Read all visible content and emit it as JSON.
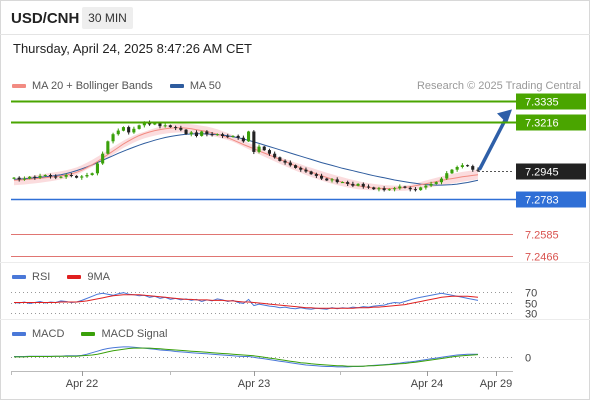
{
  "header": {
    "symbol": "USD/CNH",
    "timeframe": "30 MIN"
  },
  "timestamp": "Thursday, April 24, 2025 8:47:26 AM CET",
  "credit": "Research © 2025 Trading Central",
  "legends": {
    "main": [
      {
        "label": "MA 20 + Bollinger Bands",
        "color": "#f28b82"
      },
      {
        "label": "MA 50",
        "color": "#2e5c9e"
      }
    ],
    "rsi": [
      {
        "label": "RSI",
        "color": "#4a78d8"
      },
      {
        "label": "9MA",
        "color": "#e02020"
      }
    ],
    "macd": [
      {
        "label": "MACD",
        "color": "#4a78d8"
      },
      {
        "label": "MACD Signal",
        "color": "#3aa00a"
      }
    ]
  },
  "colors": {
    "up": "#3aa00a",
    "down": "#222222",
    "resistance": "#4aa500",
    "support": "#2f6fd6",
    "lower_support": "#d9534f",
    "current": "#222222",
    "bands": "#f9c9cc",
    "ma20": "#f28b82",
    "ma50": "#2e5c9e"
  },
  "chart_data": [
    {
      "type": "candlestick",
      "title": "USD/CNH 30 MIN",
      "x_ticks": [
        "Apr 22",
        "Apr 23",
        "Apr 24",
        "Apr 29"
      ],
      "ylim": [
        7.243,
        7.3365
      ],
      "current_price": 7.2945,
      "levels": [
        {
          "value": 7.3335,
          "label": "7.3335",
          "kind": "resistance"
        },
        {
          "value": 7.3216,
          "label": "7.3216",
          "kind": "resistance"
        },
        {
          "value": 7.2945,
          "label": "7.2945",
          "kind": "current"
        },
        {
          "value": 7.2783,
          "label": "7.2783",
          "kind": "support"
        },
        {
          "value": 7.2585,
          "label": "7.2585",
          "kind": "lower_support"
        },
        {
          "value": 7.2466,
          "label": "7.2466",
          "kind": "lower_support"
        }
      ],
      "close_series": [
        7.2905,
        7.2895,
        7.29,
        7.291,
        7.2905,
        7.2915,
        7.292,
        7.2912,
        7.2905,
        7.291,
        7.292,
        7.2915,
        7.2905,
        7.2912,
        7.292,
        7.293,
        7.2985,
        7.304,
        7.311,
        7.315,
        7.317,
        7.319,
        7.316,
        7.318,
        7.32,
        7.3215,
        7.3205,
        7.321,
        7.3195,
        7.32,
        7.319,
        7.3185,
        7.3175,
        7.315,
        7.316,
        7.314,
        7.3165,
        7.315,
        7.3145,
        7.315,
        7.314,
        7.3135,
        7.314,
        7.313,
        7.311,
        7.3165,
        7.305,
        7.308,
        7.306,
        7.304,
        7.302,
        7.3,
        7.299,
        7.2975,
        7.296,
        7.295,
        7.294,
        7.2925,
        7.2915,
        7.29,
        7.289,
        7.2895,
        7.288,
        7.288,
        7.287,
        7.286,
        7.287,
        7.2855,
        7.285,
        7.284,
        7.2845,
        7.2835,
        7.284,
        7.2845,
        7.2855,
        7.2848,
        7.284,
        7.2835,
        7.285,
        7.286,
        7.287,
        7.288,
        7.29,
        7.293,
        7.295,
        7.2965,
        7.2975,
        7.297,
        7.295,
        7.2945
      ],
      "ma50": [
        7.2895,
        7.2897,
        7.2899,
        7.2902,
        7.2904,
        7.2907,
        7.291,
        7.2913,
        7.2917,
        7.2922,
        7.2928,
        7.2936,
        7.2945,
        7.2955,
        7.2965,
        7.2977,
        7.299,
        7.3003,
        7.3016,
        7.3029,
        7.3042,
        7.3054,
        7.3066,
        7.3077,
        7.3088,
        7.3098,
        7.3107,
        7.3116,
        7.3124,
        7.3131,
        7.3137,
        7.3142,
        7.3146,
        7.3149,
        7.3151,
        7.3152,
        7.3152,
        7.3151,
        7.315,
        7.3148,
        7.3145,
        7.3141,
        7.3136,
        7.313,
        7.3123,
        7.3115,
        7.3107,
        7.3098,
        7.3089,
        7.308,
        7.3071,
        7.3062,
        7.3053,
        7.3044,
        7.3035,
        7.3026,
        7.3017,
        7.3008,
        7.2999,
        7.299,
        7.2982,
        7.2974,
        7.2966,
        7.2958,
        7.2951,
        7.2944,
        7.2937,
        7.293,
        7.2923,
        7.2916,
        7.291,
        7.2904,
        7.2898,
        7.2892,
        7.2887,
        7.2882,
        7.2877,
        7.2873,
        7.2869,
        7.2866,
        7.2864,
        7.2863,
        7.2863,
        7.2864,
        7.2866,
        7.2869,
        7.2873,
        7.2878,
        7.2884,
        7.289
      ],
      "ma20": [
        7.289,
        7.2892,
        7.2894,
        7.2897,
        7.2899,
        7.2902,
        7.2905,
        7.2908,
        7.2911,
        7.2915,
        7.292,
        7.2926,
        7.2935,
        7.2947,
        7.2962,
        7.2978,
        7.2996,
        7.3015,
        7.3035,
        7.3055,
        7.3075,
        7.3095,
        7.3112,
        7.3128,
        7.3142,
        7.3153,
        7.3162,
        7.317,
        7.3176,
        7.3181,
        7.3184,
        7.3186,
        7.3186,
        7.3184,
        7.318,
        7.3175,
        7.317,
        7.3165,
        7.3158,
        7.315,
        7.314,
        7.313,
        7.3118,
        7.3105,
        7.3092,
        7.308,
        7.3068,
        7.3056,
        7.3044,
        7.3032,
        7.302,
        7.3008,
        7.2996,
        7.2984,
        7.2972,
        7.296,
        7.2948,
        7.2937,
        7.2926,
        7.2916,
        7.2906,
        7.2897,
        7.2888,
        7.288,
        7.2872,
        7.2865,
        7.2859,
        7.2854,
        7.285,
        7.2847,
        7.2845,
        7.2844,
        7.2844,
        7.2845,
        7.2847,
        7.285,
        7.2854,
        7.2859,
        7.2865,
        7.2871,
        7.2877,
        7.2883,
        7.2889,
        7.2895,
        7.29,
        7.2905,
        7.291,
        7.2914,
        7.2918,
        7.2922
      ]
    },
    {
      "type": "line",
      "title": "RSI",
      "levels": [
        70,
        50,
        30
      ],
      "ylim": [
        20,
        80
      ],
      "series": [
        {
          "name": "RSI",
          "values": [
            50,
            49,
            51,
            48,
            50,
            52,
            49,
            51,
            50,
            53,
            52,
            50,
            51,
            54,
            58,
            62,
            66,
            68,
            66,
            64,
            67,
            69,
            66,
            65,
            63,
            64,
            60,
            62,
            58,
            60,
            56,
            58,
            55,
            57,
            54,
            56,
            52,
            55,
            53,
            57,
            55,
            52,
            54,
            50,
            48,
            56,
            44,
            47,
            45,
            43,
            42,
            40,
            41,
            39,
            38,
            40,
            38,
            37,
            39,
            38,
            37,
            40,
            38,
            40,
            39,
            41,
            40,
            42,
            41,
            43,
            44,
            45,
            48,
            50,
            49,
            52,
            55,
            58,
            60,
            62,
            64,
            66,
            68,
            66,
            64,
            62,
            60,
            58,
            56,
            54
          ]
        },
        {
          "name": "9MA",
          "values": [
            50,
            50,
            50,
            50,
            50,
            50,
            50,
            50,
            50,
            51,
            51,
            51,
            51,
            52,
            53,
            55,
            57,
            59,
            61,
            63,
            64,
            65,
            65,
            65,
            65,
            64,
            63,
            62,
            61,
            60,
            59,
            58,
            57,
            56,
            56,
            55,
            55,
            55,
            54,
            54,
            54,
            53,
            53,
            52,
            51,
            51,
            50,
            49,
            48,
            47,
            46,
            45,
            44,
            43,
            42,
            41,
            40,
            40,
            39,
            39,
            39,
            39,
            39,
            39,
            39,
            39,
            40,
            40,
            40,
            41,
            41,
            42,
            43,
            44,
            45,
            46,
            48,
            50,
            52,
            54,
            56,
            58,
            60,
            61,
            62,
            62,
            62,
            62,
            61,
            60
          ]
        }
      ]
    },
    {
      "type": "line",
      "title": "MACD",
      "levels": [
        0
      ],
      "ylim": [
        -0.0035,
        0.003
      ],
      "series": [
        {
          "name": "MACD",
          "values": [
            0.0,
            0.0,
            0.0,
            0.0001,
            0.0001,
            0.0001,
            0.0001,
            0.0001,
            0.0001,
            0.0001,
            0.0002,
            0.0002,
            0.0002,
            0.0003,
            0.0006,
            0.001,
            0.0014,
            0.0018,
            0.0021,
            0.0023,
            0.0024,
            0.0025,
            0.0025,
            0.0024,
            0.0023,
            0.0022,
            0.002,
            0.0019,
            0.0017,
            0.0016,
            0.0015,
            0.0013,
            0.0012,
            0.0011,
            0.001,
            0.0009,
            0.0008,
            0.0007,
            0.0006,
            0.0005,
            0.0004,
            0.0003,
            0.0002,
            0.0001,
            0.0,
            0.0,
            -0.0002,
            -0.0004,
            -0.0006,
            -0.0008,
            -0.001,
            -0.0012,
            -0.0014,
            -0.0016,
            -0.0018,
            -0.002,
            -0.0022,
            -0.0023,
            -0.0024,
            -0.0025,
            -0.0026,
            -0.0026,
            -0.0027,
            -0.0027,
            -0.0027,
            -0.0026,
            -0.0026,
            -0.0025,
            -0.0024,
            -0.0023,
            -0.0022,
            -0.0021,
            -0.002,
            -0.0018,
            -0.0017,
            -0.0015,
            -0.0014,
            -0.0012,
            -0.001,
            -0.0008,
            -0.0006,
            -0.0004,
            -0.0002,
            0.0,
            0.0002,
            0.0004,
            0.0005,
            0.0006,
            0.0006,
            0.0006
          ]
        },
        {
          "name": "MACD Signal",
          "values": [
            -0.0001,
            -0.0001,
            -0.0001,
            0.0,
            0.0,
            0.0,
            0.0,
            0.0,
            0.0001,
            0.0001,
            0.0001,
            0.0001,
            0.0001,
            0.0002,
            0.0003,
            0.0004,
            0.0006,
            0.0009,
            0.0012,
            0.0015,
            0.0017,
            0.0019,
            0.0021,
            0.0022,
            0.0022,
            0.0022,
            0.0022,
            0.0021,
            0.002,
            0.0019,
            0.0018,
            0.0017,
            0.0016,
            0.0015,
            0.0014,
            0.0013,
            0.0012,
            0.0011,
            0.001,
            0.0009,
            0.0008,
            0.0007,
            0.0006,
            0.0005,
            0.0004,
            0.0003,
            0.0002,
            0.0,
            -0.0002,
            -0.0004,
            -0.0006,
            -0.0008,
            -0.001,
            -0.0012,
            -0.0014,
            -0.0016,
            -0.0017,
            -0.0019,
            -0.002,
            -0.0021,
            -0.0022,
            -0.0023,
            -0.0024,
            -0.0024,
            -0.0025,
            -0.0025,
            -0.0025,
            -0.0025,
            -0.0024,
            -0.0024,
            -0.0023,
            -0.0022,
            -0.0021,
            -0.002,
            -0.0019,
            -0.0018,
            -0.0016,
            -0.0015,
            -0.0013,
            -0.0011,
            -0.0009,
            -0.0007,
            -0.0005,
            -0.0003,
            -0.0001,
            0.0001,
            0.0002,
            0.0003,
            0.0004,
            0.0005
          ]
        }
      ]
    }
  ]
}
